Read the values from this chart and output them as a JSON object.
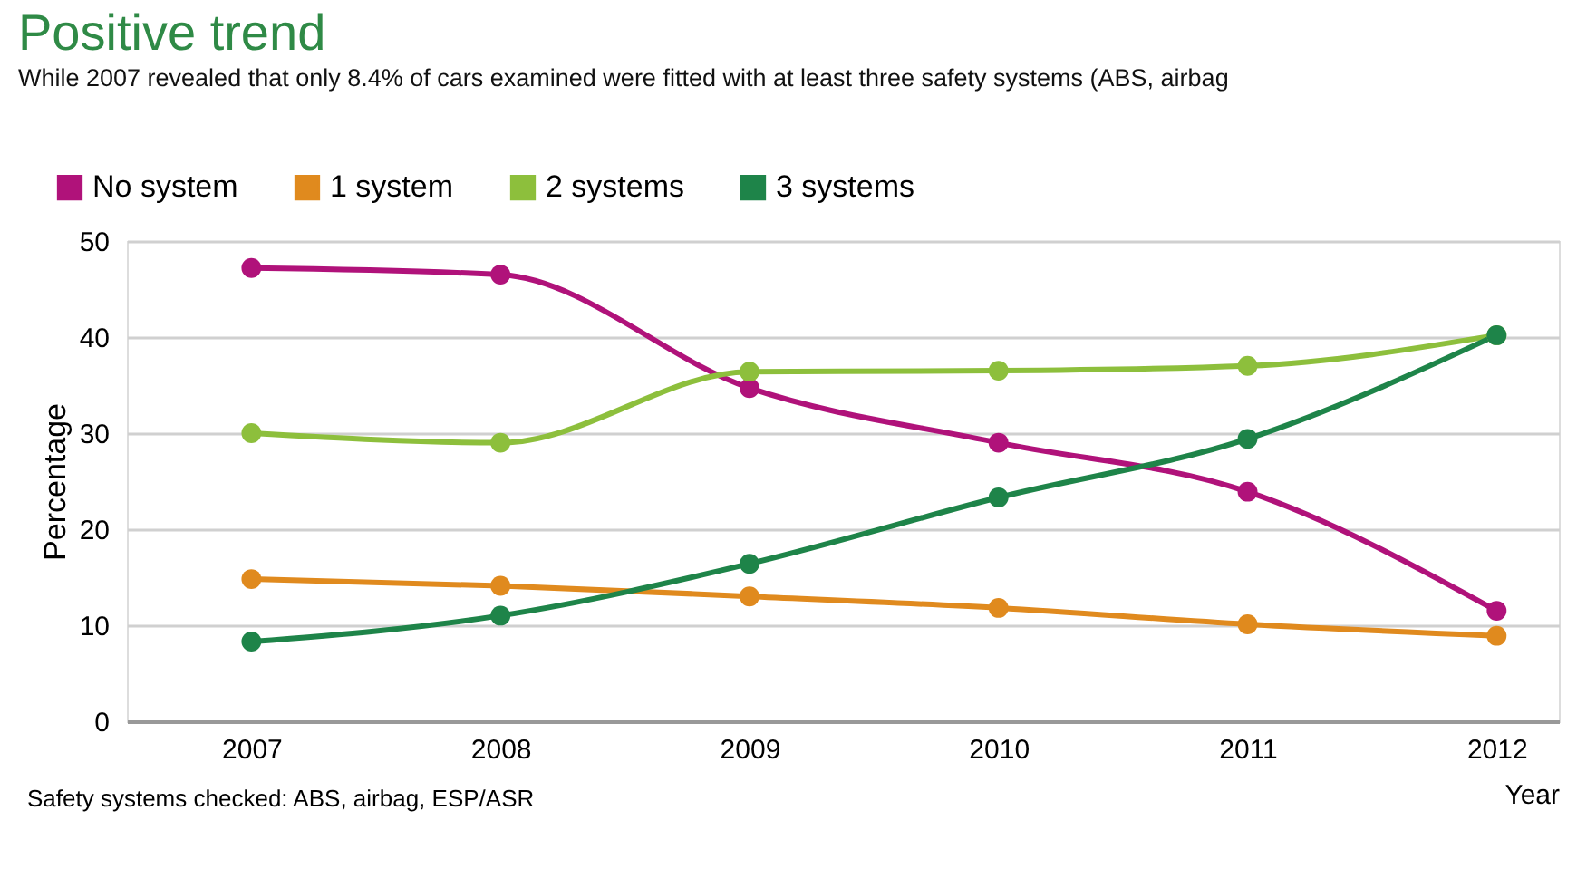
{
  "chart_data": {
    "type": "line",
    "title": "Positive trend",
    "subtitle": "While 2007 revealed that only 8.4% of cars examined were fitted with at least three safety systems (ABS, airbag",
    "xlabel": "Year",
    "ylabel": "Percentage",
    "x": [
      2007,
      2008,
      2009,
      2010,
      2011,
      2012
    ],
    "series": [
      {
        "name": "No system",
        "color": "#b0127a",
        "values": [
          47.2,
          46.5,
          34.7,
          29.0,
          23.9,
          11.5
        ]
      },
      {
        "name": "1 system",
        "color": "#e08a1e",
        "values": [
          14.8,
          14.1,
          13.0,
          11.8,
          10.1,
          8.9
        ]
      },
      {
        "name": "2 systems",
        "color": "#8dbf3c",
        "values": [
          30.0,
          29.0,
          36.4,
          36.5,
          37.0,
          40.2
        ]
      },
      {
        "name": "3 systems",
        "color": "#1e8449",
        "values": [
          8.3,
          11.0,
          16.4,
          23.3,
          29.4,
          40.2
        ]
      }
    ],
    "xlim": [
      2006.5,
      2012.25
    ],
    "xticks": [
      2007,
      2008,
      2009,
      2010,
      2011,
      2012
    ],
    "ylim": [
      0,
      50
    ],
    "yticks": [
      0,
      10,
      20,
      30,
      40,
      50
    ],
    "grid": "y",
    "legend": "top left",
    "marker": "circle",
    "line_style": "solid",
    "annotations": [
      "Safety systems checked: ABS, airbag, ESP/ASR"
    ]
  }
}
